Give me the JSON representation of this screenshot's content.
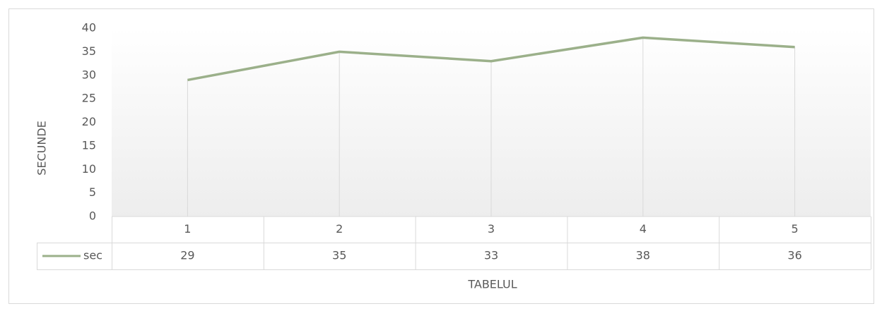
{
  "chart_data": {
    "type": "line",
    "categories": [
      "1",
      "2",
      "3",
      "4",
      "5"
    ],
    "series": [
      {
        "name": "sec",
        "color": "#9bb08a",
        "values": [
          29,
          35,
          33,
          38,
          36
        ]
      }
    ],
    "ylim": [
      0,
      40
    ],
    "yticks": [
      0,
      5,
      10,
      15,
      20,
      25,
      30,
      35,
      40
    ],
    "ylabel": "SECUNDE",
    "xlabel": "TABELUL",
    "grid": false,
    "drop_lines": true,
    "data_table": true
  }
}
